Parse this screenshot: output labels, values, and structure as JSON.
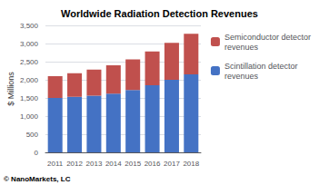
{
  "chart_data": {
    "type": "bar",
    "stacked": true,
    "title": "Worldwide Radiation Detection Revenues",
    "ylabel": "$ Millions",
    "categories": [
      "2011",
      "2012",
      "2013",
      "2014",
      "2015",
      "2016",
      "2017",
      "2018"
    ],
    "series": [
      {
        "name": "Scintillation detector\nrevenues",
        "color": "#4472C4",
        "values": [
          1500,
          1530,
          1560,
          1620,
          1720,
          1850,
          2000,
          2150
        ]
      },
      {
        "name": "Semiconductor detector\nrevenues",
        "color": "#C0504D",
        "values": [
          600,
          650,
          720,
          780,
          840,
          930,
          1020,
          1120
        ]
      }
    ],
    "ylim": [
      0,
      3500
    ],
    "yticks": [
      0,
      500,
      {
        "value": 1000,
        "label": "1,000"
      },
      {
        "value": 1500,
        "label": "1,500"
      },
      {
        "value": 2000,
        "label": "2,000"
      },
      {
        "value": 2500,
        "label": "2,500"
      },
      {
        "value": 3000,
        "label": "3,000"
      },
      {
        "value": 3500,
        "label": "3,500"
      }
    ],
    "grid": true,
    "legend": "right",
    "annotations": [
      "© NanoMarkets, LC"
    ]
  }
}
